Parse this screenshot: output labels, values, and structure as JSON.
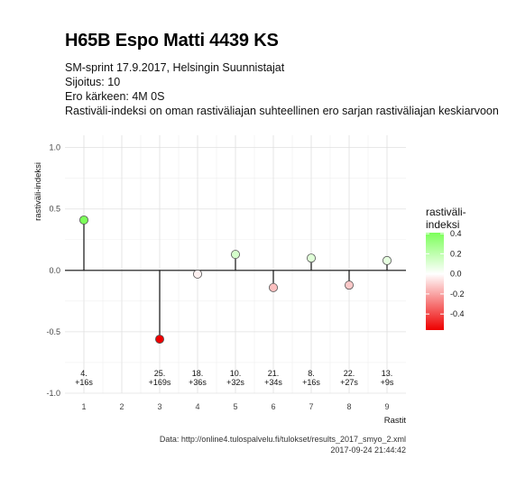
{
  "header": {
    "title": "H65B Espo Matti 4439 KS",
    "subtitle1": "SM-sprint 17.9.2017, Helsingin Suunnistajat",
    "subtitle2": "Sijoitus: 10",
    "subtitle3": "Ero kärkeen: 4M 0S",
    "subtitle4": "Rastiväli-indeksi on oman rastiväliajan suhteellinen ero sarjan rastiväliajan keskiarvoon"
  },
  "caption": {
    "line1": "Data: http://online4.tulospalvelu.fi/tulokset/results_2017_smyo_2.xml",
    "line2": "2017-09-24 21:44:42"
  },
  "colors": {
    "high": "#7cff5a",
    "mid": "#ffffff",
    "low": "#ee0000"
  },
  "chart_data": {
    "type": "lollipop",
    "xlabel": "Rastit",
    "ylabel": "rastiväli-indeksi",
    "xlim": [
      0.5,
      9.5
    ],
    "ylim": [
      -1.0,
      1.1
    ],
    "xticks": [
      "1",
      "2",
      "3",
      "4",
      "5",
      "6",
      "7",
      "8",
      "9"
    ],
    "yticks": [
      "-1.0",
      "-0.5",
      "0.0",
      "0.5",
      "1.0"
    ],
    "points": [
      {
        "x": 1,
        "y": 0.41,
        "label1": "4.",
        "label2": "+16s"
      },
      {
        "x": 3,
        "y": -0.56,
        "label1": "25.",
        "label2": "+169s"
      },
      {
        "x": 4,
        "y": -0.03,
        "label1": "18.",
        "label2": "+36s"
      },
      {
        "x": 5,
        "y": 0.13,
        "label1": "10.",
        "label2": "+32s"
      },
      {
        "x": 6,
        "y": -0.14,
        "label1": "21.",
        "label2": "+34s"
      },
      {
        "x": 7,
        "y": 0.1,
        "label1": "8.",
        "label2": "+16s"
      },
      {
        "x": 8,
        "y": -0.12,
        "label1": "22.",
        "label2": "+27s"
      },
      {
        "x": 9,
        "y": 0.08,
        "label1": "13.",
        "label2": "+9s"
      }
    ],
    "legend": {
      "title_line1": "rastiväli-",
      "title_line2": "indeksi",
      "ticks": [
        "0.4",
        "0.2",
        "0.0",
        "-0.2",
        "-0.4"
      ],
      "tick_values": [
        0.4,
        0.2,
        0.0,
        -0.2,
        -0.4
      ],
      "range": [
        -0.56,
        0.41
      ],
      "placement": "right"
    },
    "grid": true
  }
}
